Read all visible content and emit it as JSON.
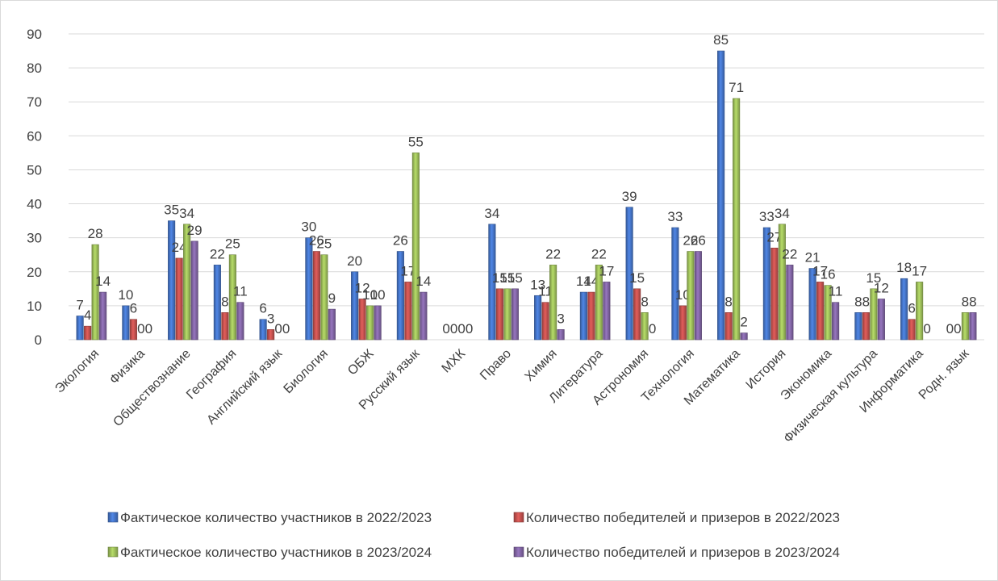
{
  "chart_data": {
    "type": "bar",
    "title": "",
    "xlabel": "",
    "ylabel": "",
    "ylim": [
      0,
      90
    ],
    "yticks": [
      0,
      10,
      20,
      30,
      40,
      50,
      60,
      70,
      80,
      90
    ],
    "grid": true,
    "legend_position": "bottom",
    "categories": [
      "Экология",
      "Физика",
      "Обществознание",
      "География",
      "Английский язык",
      "Биология",
      "ОБЖ",
      "Русский язык",
      "МХК",
      "Право",
      "Химия",
      "Литература",
      "Астрономия",
      "Технология",
      "Математика",
      "История",
      "Экономика",
      "Физическая культура",
      "Информатика",
      "Родн. язык"
    ],
    "series": [
      {
        "name": "Фактическое количество участников в 2022/2023",
        "color": "#4472C4",
        "values": [
          7,
          10,
          35,
          22,
          6,
          30,
          20,
          26,
          0,
          34,
          13,
          14,
          39,
          33,
          85,
          33,
          21,
          8,
          18,
          0
        ]
      },
      {
        "name": "Количество победителей и призеров в 2022/2023",
        "color": "#C0504D",
        "values": [
          4,
          6,
          24,
          8,
          3,
          26,
          12,
          17,
          0,
          15,
          11,
          14,
          15,
          10,
          8,
          27,
          17,
          8,
          6,
          0
        ]
      },
      {
        "name": "Фактическое количество участников в 2023/2024",
        "color": "#9BBB59",
        "values": [
          28,
          0,
          34,
          25,
          0,
          25,
          10,
          55,
          0,
          15,
          22,
          22,
          8,
          26,
          71,
          34,
          16,
          15,
          17,
          8
        ]
      },
      {
        "name": "Количество победителей и призеров в 2023/2024",
        "color": "#8064A2",
        "values": [
          14,
          0,
          29,
          11,
          0,
          9,
          10,
          14,
          0,
          15,
          3,
          17,
          0,
          26,
          2,
          22,
          11,
          12,
          0,
          8
        ]
      }
    ]
  }
}
